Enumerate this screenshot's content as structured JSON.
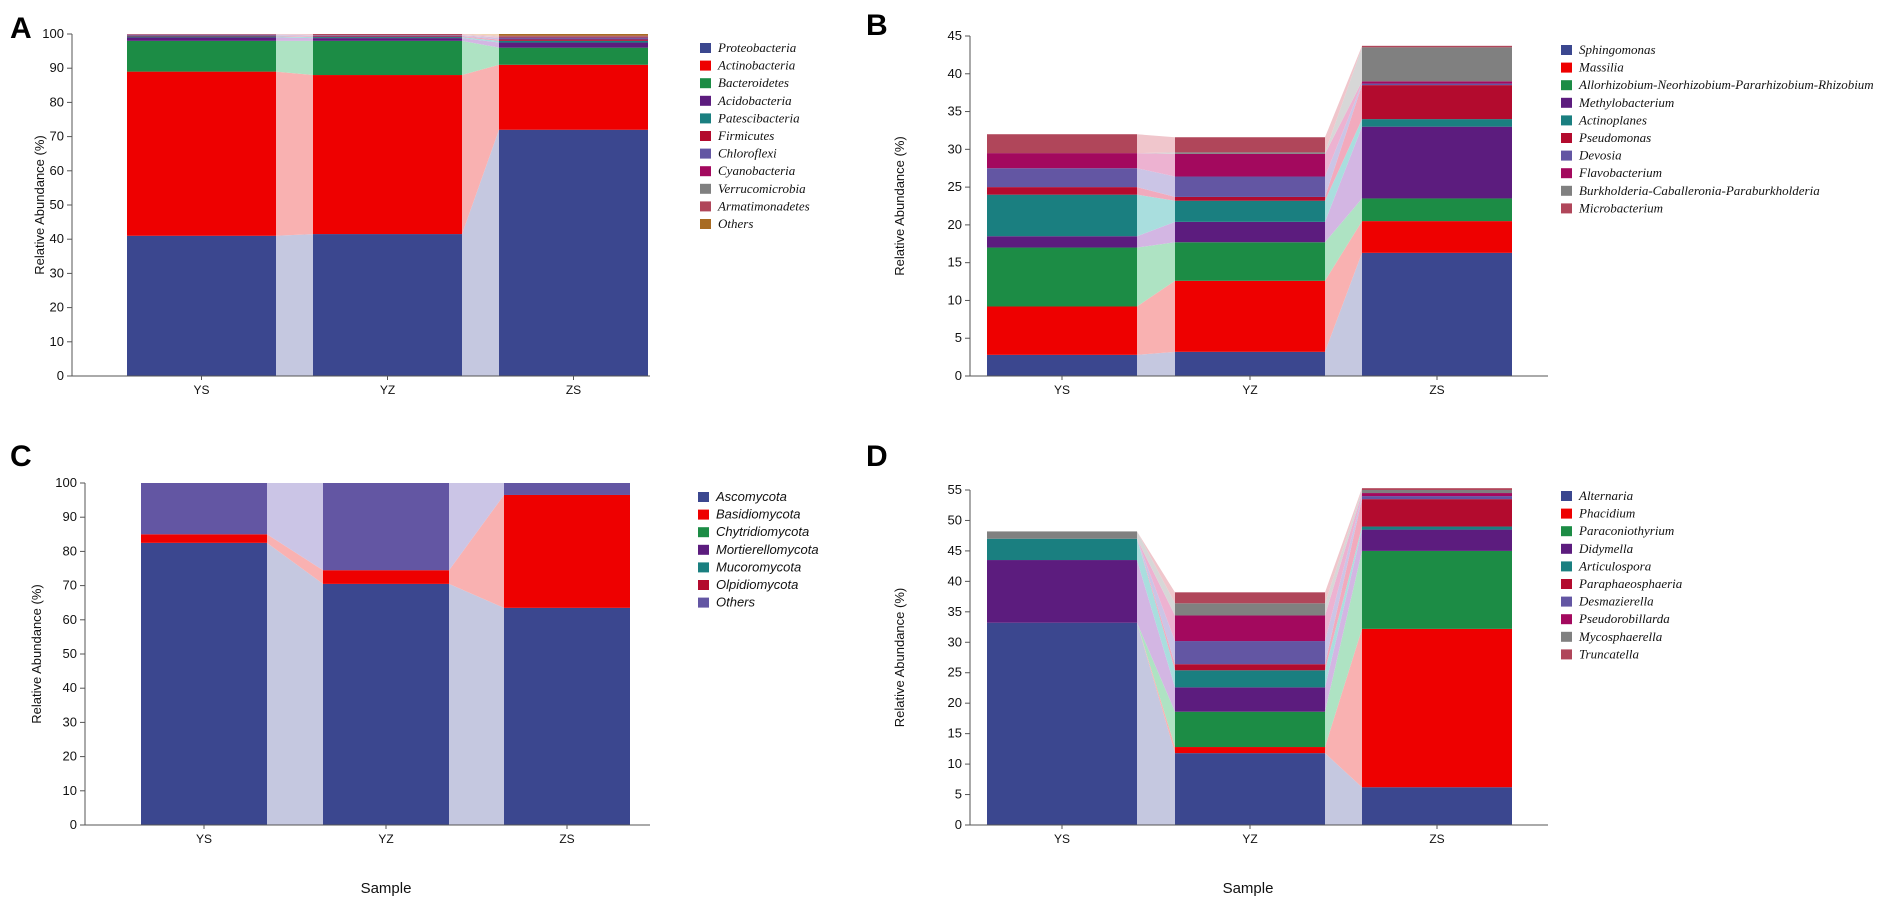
{
  "colors": [
    "#3b478f",
    "#ee0000",
    "#1c8c45",
    "#5c1c7e",
    "#1a7f80",
    "#b30b2e",
    "#6356a3",
    "#a3095e",
    "#808080",
    "#b0465a",
    "#a86b22"
  ],
  "flow_colors": [
    "#c5c8e0",
    "#f9b1b1",
    "#aee3c3",
    "#d3b6e3",
    "#a9dede",
    "#f2aabd",
    "#cbc5e6",
    "#edb2d1",
    "#d7d7d7",
    "#f0c6cc",
    "#f1d6b5"
  ],
  "x_axis_label": "Sample",
  "chart_data": [
    {
      "panel": "A",
      "type": "bar",
      "stacked": true,
      "categories": [
        "YS",
        "YZ",
        "ZS"
      ],
      "ylabel": "Relative Abundance (%)",
      "ylim": [
        0,
        100
      ],
      "yticks": [
        0,
        10,
        20,
        30,
        40,
        50,
        60,
        70,
        80,
        90,
        100
      ],
      "legend_font": "serif",
      "series": [
        {
          "name": "Proteobacteria",
          "values": [
            41.0,
            41.5,
            72.0
          ]
        },
        {
          "name": "Actinobacteria",
          "values": [
            48.0,
            46.5,
            19.0
          ]
        },
        {
          "name": "Bacteroidetes",
          "values": [
            9.0,
            10.0,
            5.0
          ]
        },
        {
          "name": "Acidobacteria",
          "values": [
            1.0,
            0.8,
            1.5
          ]
        },
        {
          "name": "Patescibacteria",
          "values": [
            0.3,
            0.3,
            0.5
          ]
        },
        {
          "name": "Firmicutes",
          "values": [
            0.2,
            0.2,
            0.4
          ]
        },
        {
          "name": "Chloroflexi",
          "values": [
            0.2,
            0.2,
            0.4
          ]
        },
        {
          "name": "Cyanobacteria",
          "values": [
            0.1,
            0.1,
            0.2
          ]
        },
        {
          "name": "Verrucomicrobia",
          "values": [
            0.1,
            0.1,
            0.2
          ]
        },
        {
          "name": "Armatimonadetes",
          "values": [
            0.1,
            0.3,
            0.3
          ]
        },
        {
          "name": "Others",
          "values": [
            0.0,
            0.0,
            0.5
          ]
        }
      ]
    },
    {
      "panel": "B",
      "type": "bar",
      "stacked": true,
      "categories": [
        "YS",
        "YZ",
        "ZS"
      ],
      "ylabel": "Relative Abundance (%)",
      "ylim": [
        0,
        45
      ],
      "yticks": [
        0,
        5,
        10,
        15,
        20,
        25,
        30,
        35,
        40,
        45
      ],
      "legend_font": "serif",
      "series": [
        {
          "name": "Sphingomonas",
          "values": [
            2.8,
            3.2,
            16.3
          ]
        },
        {
          "name": "Massilia",
          "values": [
            6.4,
            9.4,
            4.2
          ]
        },
        {
          "name": "Allorhizobium-Neorhizobium-Pararhizobium-Rhizobium",
          "values": [
            7.8,
            5.1,
            3.0
          ]
        },
        {
          "name": "Methylobacterium",
          "values": [
            1.5,
            2.7,
            9.5
          ]
        },
        {
          "name": "Actinoplanes",
          "values": [
            5.5,
            2.8,
            1.0
          ]
        },
        {
          "name": "Pseudomonas",
          "values": [
            1.0,
            0.5,
            4.5
          ]
        },
        {
          "name": "Devosia",
          "values": [
            2.5,
            2.7,
            0.2
          ]
        },
        {
          "name": "Flavobacterium",
          "values": [
            2.0,
            3.0,
            0.3
          ]
        },
        {
          "name": "Burkholderia-Caballeronia-Paraburkholderia",
          "values": [
            0.0,
            0.2,
            4.5
          ]
        },
        {
          "name": "Microbacterium",
          "values": [
            2.5,
            2.0,
            0.2
          ]
        }
      ]
    },
    {
      "panel": "C",
      "type": "bar",
      "stacked": true,
      "categories": [
        "YS",
        "YZ",
        "ZS"
      ],
      "ylabel": "Relative Abundance (%)",
      "ylim": [
        0,
        100
      ],
      "yticks": [
        0,
        10,
        20,
        30,
        40,
        50,
        60,
        70,
        80,
        90,
        100
      ],
      "legend_font": "sans",
      "series": [
        {
          "name": "Ascomycota",
          "values": [
            82.5,
            70.5,
            63.5
          ]
        },
        {
          "name": "Basidiomycota",
          "values": [
            2.5,
            4.0,
            33.0
          ]
        },
        {
          "name": "Chytridiomycota",
          "values": [
            0.0,
            0.0,
            0.0
          ]
        },
        {
          "name": "Mortierellomycota",
          "values": [
            0.0,
            0.0,
            0.0
          ]
        },
        {
          "name": "Mucoromycota",
          "values": [
            0.0,
            0.0,
            0.0
          ]
        },
        {
          "name": "Olpidiomycota",
          "values": [
            0.0,
            0.0,
            0.0
          ]
        },
        {
          "name": "Others",
          "values": [
            15.0,
            25.5,
            3.5
          ]
        }
      ]
    },
    {
      "panel": "D",
      "type": "bar",
      "stacked": true,
      "categories": [
        "YS",
        "YZ",
        "ZS"
      ],
      "ylabel": "Relative Abundance (%)",
      "ylim": [
        0,
        55
      ],
      "yticks": [
        0,
        5,
        10,
        15,
        20,
        25,
        30,
        35,
        40,
        45,
        50,
        55
      ],
      "legend_font": "serif",
      "series": [
        {
          "name": "Alternaria",
          "values": [
            33.2,
            11.8,
            6.2
          ]
        },
        {
          "name": "Phacidium",
          "values": [
            0.0,
            1.0,
            26.0
          ]
        },
        {
          "name": "Paraconiothyrium",
          "values": [
            0.0,
            5.8,
            12.8
          ]
        },
        {
          "name": "Didymella",
          "values": [
            10.3,
            4.0,
            3.5
          ]
        },
        {
          "name": "Articulospora",
          "values": [
            3.5,
            2.8,
            0.5
          ]
        },
        {
          "name": "Paraphaeosphaeria",
          "values": [
            0.0,
            1.0,
            4.5
          ]
        },
        {
          "name": "Desmazierella",
          "values": [
            0.0,
            3.8,
            0.5
          ]
        },
        {
          "name": "Pseudorobillarda",
          "values": [
            0.0,
            4.2,
            0.5
          ]
        },
        {
          "name": "Mycosphaerella",
          "values": [
            1.2,
            2.0,
            0.5
          ]
        },
        {
          "name": "Truncatella",
          "values": [
            0.0,
            1.8,
            0.3
          ]
        }
      ]
    }
  ]
}
